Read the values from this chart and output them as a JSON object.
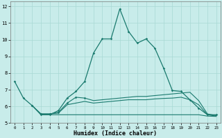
{
  "xlabel": "Humidex (Indice chaleur)",
  "background_color": "#c8ecea",
  "grid_color": "#a8d8d4",
  "line_color": "#1a7a6e",
  "xlim_min": -0.5,
  "xlim_max": 23.5,
  "ylim_min": 5.0,
  "ylim_max": 12.3,
  "x_ticks": [
    0,
    1,
    2,
    3,
    4,
    5,
    6,
    7,
    8,
    9,
    10,
    11,
    12,
    13,
    14,
    15,
    16,
    17,
    18,
    19,
    20,
    21,
    22,
    23
  ],
  "y_ticks": [
    5,
    6,
    7,
    8,
    9,
    10,
    11,
    12
  ],
  "line1_x": [
    0,
    1,
    2,
    3,
    4,
    5,
    6,
    7,
    8,
    9,
    10,
    11,
    12,
    13,
    14,
    15,
    16,
    17,
    18,
    19,
    20,
    21,
    22,
    23
  ],
  "line1_y": [
    7.5,
    6.5,
    6.05,
    5.5,
    5.5,
    5.75,
    6.5,
    6.9,
    7.5,
    9.2,
    10.05,
    10.05,
    11.85,
    10.5,
    9.8,
    10.05,
    9.5,
    8.3,
    6.95,
    6.9,
    6.4,
    5.9,
    5.5,
    5.5
  ],
  "line2_x": [
    2,
    3,
    4,
    5,
    6,
    7,
    8,
    9,
    10,
    11,
    12,
    13,
    14,
    15,
    16,
    17,
    18,
    19,
    20,
    21,
    22,
    23
  ],
  "line2_y": [
    6.05,
    5.55,
    5.55,
    5.65,
    6.2,
    6.55,
    6.5,
    6.35,
    6.4,
    6.45,
    6.5,
    6.55,
    6.6,
    6.6,
    6.65,
    6.7,
    6.75,
    6.8,
    6.85,
    6.35,
    5.55,
    5.45
  ],
  "line3_x": [
    2,
    3,
    4,
    5,
    6,
    7,
    8,
    9,
    10,
    11,
    12,
    13,
    14,
    15,
    16,
    17,
    18,
    19,
    20,
    21,
    22,
    23
  ],
  "line3_y": [
    6.05,
    5.55,
    5.55,
    5.6,
    6.1,
    6.2,
    6.3,
    6.2,
    6.25,
    6.3,
    6.35,
    6.4,
    6.4,
    6.4,
    6.45,
    6.48,
    6.5,
    6.55,
    6.4,
    6.1,
    5.5,
    5.42
  ],
  "line4_x": [
    3,
    4,
    5,
    6,
    7,
    8,
    9,
    10,
    11,
    12,
    13,
    14,
    15,
    16,
    17,
    18,
    19,
    20,
    21,
    22,
    23
  ],
  "line4_y": [
    5.5,
    5.5,
    5.5,
    5.5,
    5.5,
    5.5,
    5.5,
    5.5,
    5.5,
    5.5,
    5.5,
    5.5,
    5.5,
    5.5,
    5.5,
    5.5,
    5.5,
    5.5,
    5.5,
    5.42,
    5.4
  ],
  "line1_marker_x": [
    0,
    1,
    2,
    3,
    4,
    5,
    6,
    7,
    8,
    9,
    10,
    11,
    12,
    13,
    14,
    15,
    16,
    17,
    18,
    19,
    20,
    21,
    22,
    23
  ],
  "line1_marker_y": [
    7.5,
    6.5,
    6.05,
    5.5,
    5.5,
    5.75,
    6.5,
    6.9,
    7.5,
    9.2,
    10.05,
    10.05,
    11.85,
    10.5,
    9.8,
    10.05,
    9.5,
    8.3,
    6.95,
    6.9,
    6.4,
    5.9,
    5.5,
    5.5
  ],
  "line2_marker_x": [
    2,
    3,
    4,
    5,
    6,
    7,
    8
  ],
  "line2_marker_y": [
    6.05,
    5.55,
    5.55,
    5.65,
    6.2,
    6.55,
    6.5
  ]
}
